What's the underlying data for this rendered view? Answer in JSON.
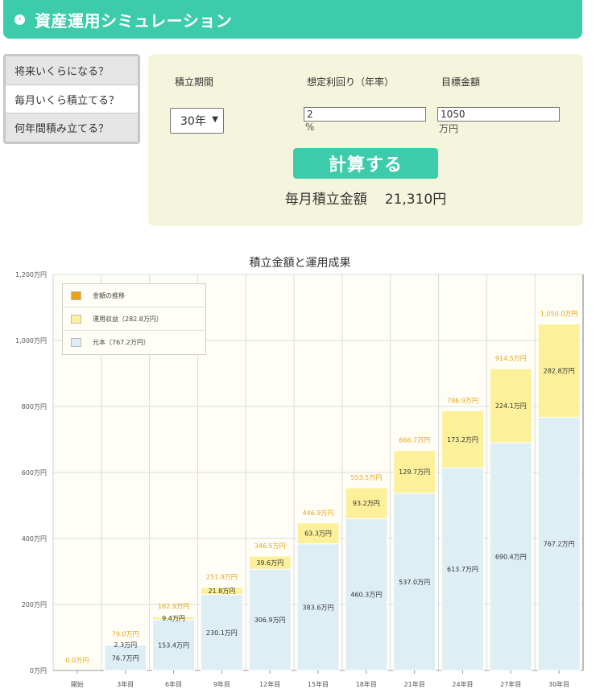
{
  "header": {
    "icon": "chevron-right-circle-icon",
    "title": "資産運用シミュレーション"
  },
  "tabs": [
    {
      "label": "将来いくらになる？",
      "active": false
    },
    {
      "label": "毎月いくら積立てる？",
      "active": true
    },
    {
      "label": "何年間積み立てる？",
      "active": false
    }
  ],
  "form": {
    "period_label": "積立期間",
    "rate_label": "想定利回り（年率）",
    "target_label": "目標金額",
    "period_value": "30年",
    "rate_value": "2",
    "rate_unit": "%",
    "target_value": "1050",
    "target_unit": "万円",
    "button_label": "計算する",
    "result_label": "毎月積立金額",
    "result_value": "21,310円"
  },
  "colors": {
    "accent": "#3dccab",
    "panel": "#f5f4dc",
    "principal": "#ddeef5",
    "gain": "#fdf09a",
    "total_label": "#e8a317",
    "legend_total": "#e8a317"
  },
  "chart_data": {
    "type": "bar",
    "title": "積立金額と運用成果",
    "categories": [
      "開始",
      "3年目",
      "6年目",
      "9年目",
      "12年目",
      "15年目",
      "18年目",
      "21年目",
      "24年目",
      "27年目",
      "30年目"
    ],
    "ylim": [
      0,
      1200
    ],
    "yticks": [
      0,
      200,
      400,
      600,
      800,
      1000,
      1200
    ],
    "ytick_labels": [
      "0万円",
      "200万円",
      "400万円",
      "600万円",
      "800万円",
      "1,000万円",
      "1,200万円"
    ],
    "series": [
      {
        "name": "元本（767.2万円）",
        "values": [
          0,
          76.7,
          153.4,
          230.1,
          306.9,
          383.6,
          460.3,
          537.0,
          613.7,
          690.4,
          767.2
        ],
        "labels": [
          "",
          "76.7万円",
          "153.4万円",
          "230.1万円",
          "306.9万円",
          "383.6万円",
          "460.3万円",
          "537.0万円",
          "613.7万円",
          "690.4万円",
          "767.2万円"
        ]
      },
      {
        "name": "運用収益（282.8万円）",
        "values": [
          0,
          2.3,
          9.4,
          21.8,
          39.6,
          63.3,
          93.2,
          129.7,
          173.2,
          224.1,
          282.8
        ],
        "labels": [
          "",
          "2.3万円",
          "9.4万円",
          "21.8万円",
          "39.6万円",
          "63.3万円",
          "93.2万円",
          "129.7万円",
          "173.2万円",
          "224.1万円",
          "282.8万円"
        ]
      }
    ],
    "totals": [
      0,
      79.0,
      162.9,
      251.9,
      346.5,
      446.9,
      553.5,
      666.7,
      786.9,
      914.5,
      1050.0
    ],
    "total_labels": [
      "0.0万円",
      "79.0万円",
      "162.9万円",
      "251.9万円",
      "346.5万円",
      "446.9万円",
      "553.5万円",
      "666.7万円",
      "786.9万円",
      "914.5万円",
      "1,050.0万円"
    ],
    "legend": [
      {
        "label": "金額の推移",
        "color": "#e8a317"
      },
      {
        "label": "運用収益（282.8万円）",
        "color": "#fdf09a"
      },
      {
        "label": "元本（767.2万円）",
        "color": "#ddeef5"
      }
    ],
    "legend_position": "top-left",
    "grid": true
  }
}
